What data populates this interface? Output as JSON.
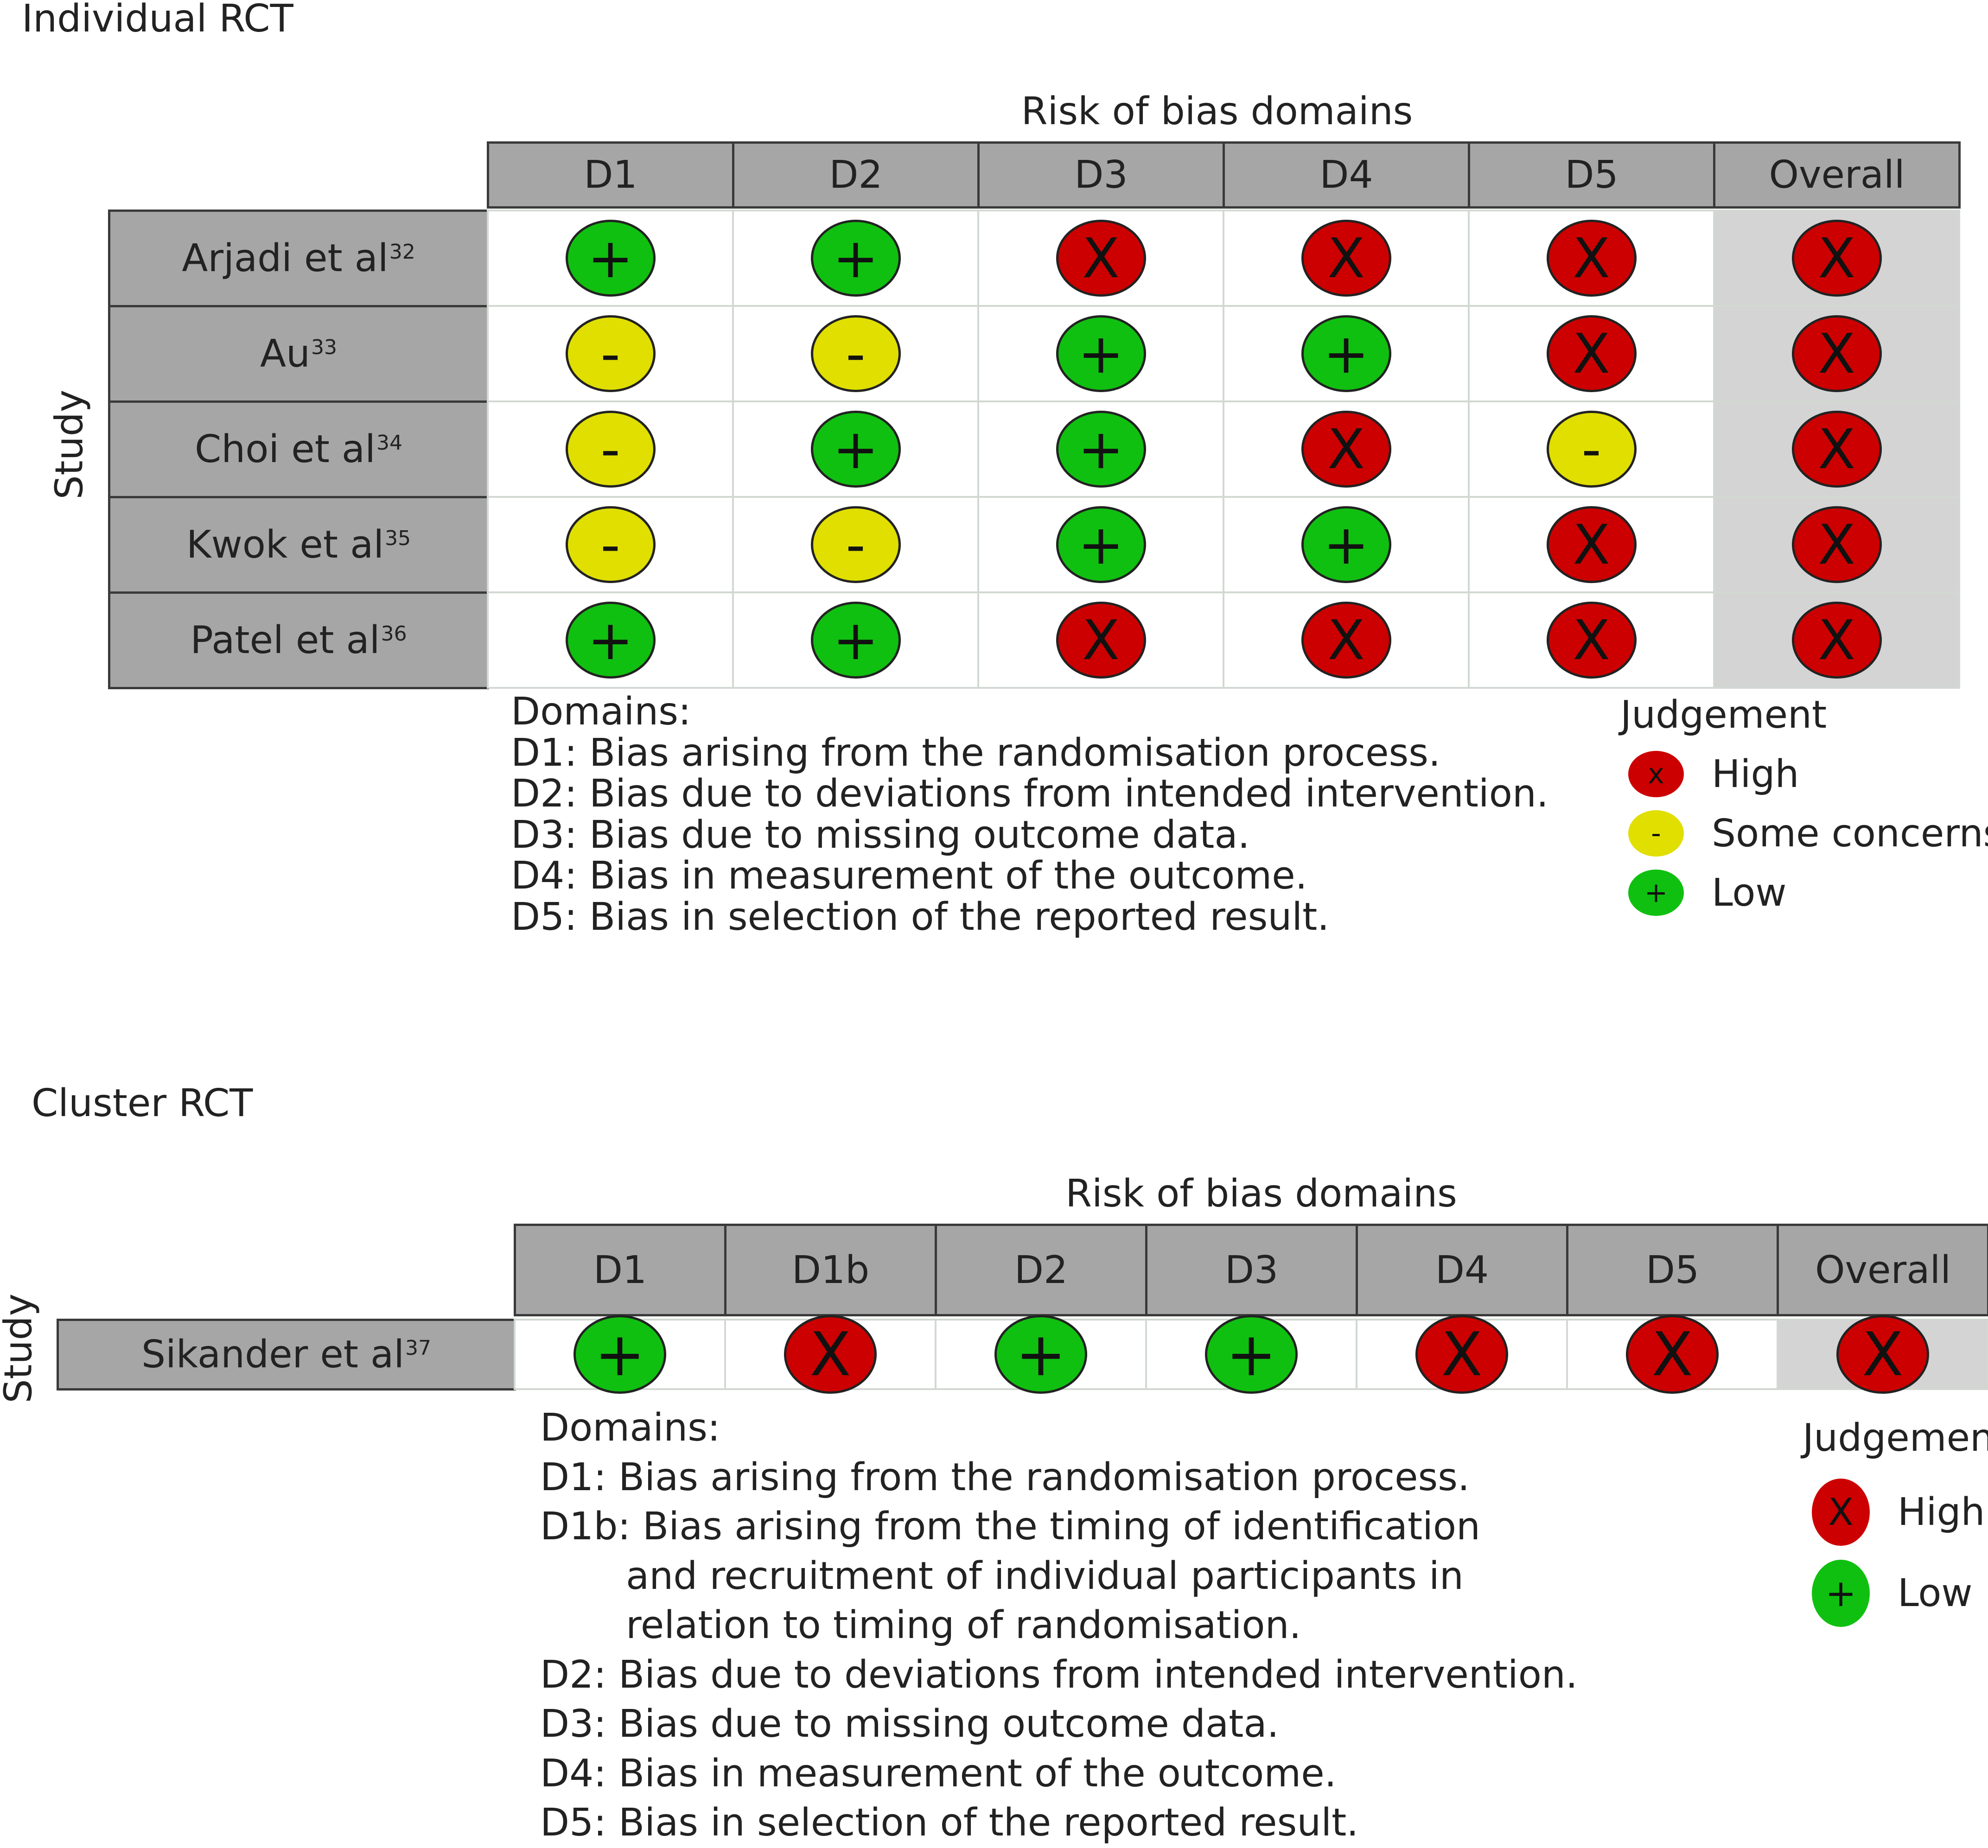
{
  "colors": {
    "high": "#cc0000",
    "some_concerns": "#e0df00",
    "low": "#10c010",
    "header": "#a6a6a6",
    "overall_bg": "#d4d4d4"
  },
  "symbols": {
    "high": "X",
    "some_concerns": "-",
    "low": "+"
  },
  "individual": {
    "title": "Individual RCT",
    "domains_header": "Risk of bias domains",
    "study_axis": "Study",
    "columns": [
      "D1",
      "D2",
      "D3",
      "D4",
      "D5",
      "Overall"
    ],
    "studies": [
      {
        "name": "Arjadi et al",
        "ref": "32",
        "judgements": [
          "low",
          "low",
          "high",
          "high",
          "high",
          "high"
        ]
      },
      {
        "name": "Au",
        "ref": "33",
        "judgements": [
          "some_concerns",
          "some_concerns",
          "low",
          "low",
          "high",
          "high"
        ]
      },
      {
        "name": "Choi et al",
        "ref": "34",
        "judgements": [
          "some_concerns",
          "low",
          "low",
          "high",
          "some_concerns",
          "high"
        ]
      },
      {
        "name": "Kwok et al",
        "ref": "35",
        "judgements": [
          "some_concerns",
          "some_concerns",
          "low",
          "low",
          "high",
          "high"
        ]
      },
      {
        "name": "Patel et al",
        "ref": "36",
        "judgements": [
          "low",
          "low",
          "high",
          "high",
          "high",
          "high"
        ]
      }
    ],
    "domains_list": [
      "Domains:",
      "D1: Bias arising from the randomisation process.",
      "D2: Bias due to deviations from intended intervention.",
      "D3: Bias due to missing outcome data.",
      "D4: Bias in measurement of the outcome.",
      "D5: Bias in selection of the reported result."
    ],
    "legend": {
      "title": "Judgement",
      "items": [
        {
          "level": "high",
          "symbol": "x",
          "label": "High"
        },
        {
          "level": "some_concerns",
          "symbol": "-",
          "label": "Some concerns"
        },
        {
          "level": "low",
          "symbol": "+",
          "label": "Low"
        }
      ]
    }
  },
  "cluster": {
    "title": "Cluster RCT",
    "domains_header": "Risk of bias domains",
    "study_axis": "Study",
    "columns": [
      "D1",
      "D1b",
      "D2",
      "D3",
      "D4",
      "D5",
      "Overall"
    ],
    "studies": [
      {
        "name": "Sikander et al",
        "ref": "37",
        "judgements": [
          "low",
          "high",
          "low",
          "low",
          "high",
          "high",
          "high"
        ]
      }
    ],
    "domains_list": [
      "Domains:",
      "D1: Bias arising from the randomisation process.",
      "D1b: Bias arising from the timing of identification",
      "and recruitment of individual participants in",
      "relation to timing of randomisation.",
      "D2: Bias due to deviations from intended intervention.",
      "D3: Bias due to missing outcome data.",
      "D4: Bias in measurement of the outcome.",
      "D5: Bias in selection of the reported result."
    ],
    "legend": {
      "title": "Judgement",
      "items": [
        {
          "level": "high",
          "symbol": "X",
          "label": "High"
        },
        {
          "level": "low",
          "symbol": "+",
          "label": "Low"
        }
      ]
    }
  }
}
